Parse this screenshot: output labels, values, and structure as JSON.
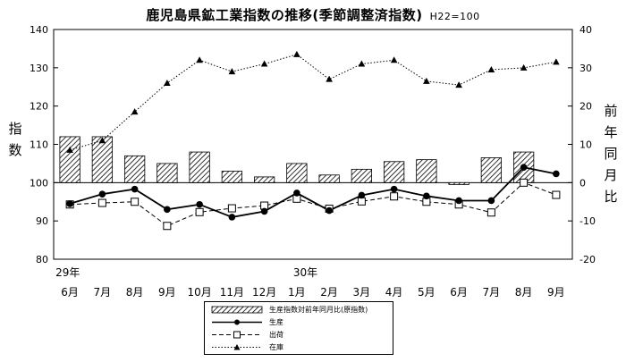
{
  "chart_data": {
    "type": "bar+line",
    "title": "鹿児島県鉱工業指数の推移(季節調整済指数)",
    "subtitle": "H22=100",
    "ylabel_left": "指数",
    "ylabel_right": "前年同月比",
    "ylim_left": [
      80,
      140
    ],
    "yticks_left": [
      "80",
      "90",
      "100",
      "110",
      "120",
      "130",
      "140"
    ],
    "ylim_right": [
      -20,
      40
    ],
    "yticks_right": [
      "-20",
      "-10",
      "0",
      "10",
      "20",
      "30",
      "40"
    ],
    "categories": [
      "6月",
      "7月",
      "8月",
      "9月",
      "10月",
      "11月",
      "12月",
      "1月",
      "2月",
      "3月",
      "4月",
      "5月",
      "6月",
      "7月",
      "8月",
      "9月"
    ],
    "year_labels": [
      "29年",
      "30年"
    ],
    "grid": false,
    "legend_position": "bottom",
    "series": [
      {
        "name": "生産指数対前年同月比(原指数)",
        "type": "bar",
        "axis": "right",
        "values": [
          12,
          12,
          7,
          5,
          8,
          3,
          1.5,
          5,
          2,
          3.5,
          5.5,
          6,
          -0.5,
          6.5,
          8,
          0
        ]
      },
      {
        "name": "生産",
        "type": "line",
        "axis": "left",
        "marker": "circle-filled",
        "linestyle": "solid",
        "values": [
          94.5,
          97,
          98.3,
          93,
          94.3,
          91,
          92.5,
          97.3,
          92.7,
          96.7,
          98.3,
          96.5,
          95.3,
          95.3,
          104,
          102.3
        ]
      },
      {
        "name": "出荷",
        "type": "line",
        "axis": "left",
        "marker": "square-open",
        "linestyle": "dashed",
        "values": [
          94.3,
          94.7,
          95,
          88.7,
          92.3,
          93.3,
          94,
          95.8,
          93.2,
          95.1,
          96.4,
          95,
          94.3,
          92.2,
          100,
          96.8
        ]
      },
      {
        "name": "在庫",
        "type": "line",
        "axis": "right",
        "marker": "triangle-filled",
        "linestyle": "dotted",
        "values": [
          8.5,
          11,
          18.5,
          26,
          32,
          29,
          31,
          33.5,
          27,
          31,
          32,
          26.5,
          25.5,
          29.5,
          30,
          31.5
        ]
      }
    ],
    "bar_fill": "hatched",
    "colors": {
      "line": "#000000",
      "bar_edge": "#000000",
      "background": "#ffffff"
    }
  }
}
